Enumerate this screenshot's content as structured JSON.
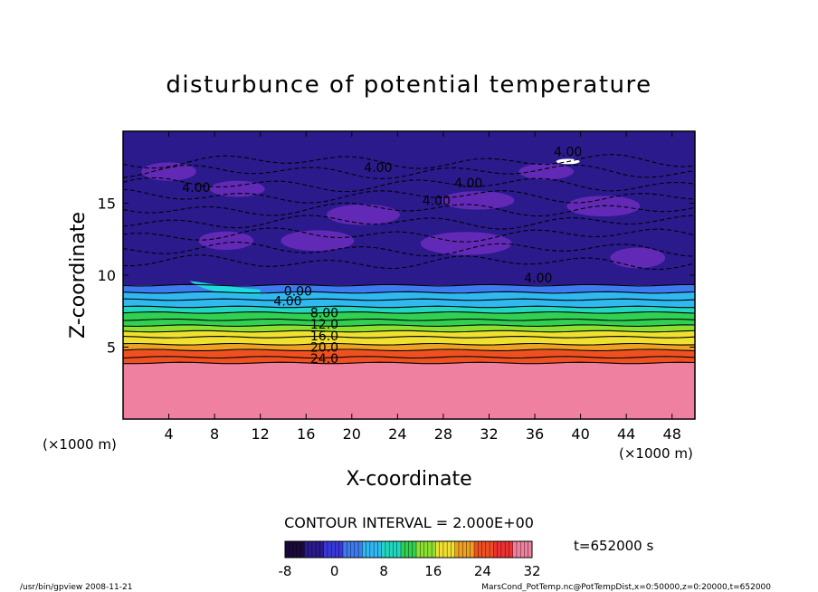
{
  "chart_data": {
    "type": "heatmap",
    "title": "disturbunce of potential temperature",
    "xlabel": "X-coordinate",
    "ylabel": "Z-coordinate",
    "x_unit": "(×1000 m)",
    "y_unit": "(×1000 m)",
    "xlim": [
      0,
      50
    ],
    "ylim": [
      0,
      20
    ],
    "x_ticks": [
      4,
      8,
      12,
      16,
      20,
      24,
      28,
      32,
      36,
      40,
      44,
      48
    ],
    "y_ticks": [
      5,
      10,
      15
    ],
    "contour_interval_text": "CONTOUR INTERVAL = 2.000E+00",
    "time_text": "t=652000 s",
    "colorbar": {
      "min": -8,
      "max": 32,
      "ticks": [
        -8,
        0,
        8,
        16,
        24,
        32
      ],
      "colors": [
        "#1a0a3a",
        "#2a1a8c",
        "#3838d8",
        "#3c7cf0",
        "#30b8f0",
        "#20d8c0",
        "#30d050",
        "#8ce030",
        "#f0e030",
        "#f0a020",
        "#f05020",
        "#f03030",
        "#f080a0"
      ]
    },
    "contour_labels": [
      {
        "text": "4.00",
        "x": 38.9,
        "z": 18.6
      },
      {
        "text": "4.00",
        "x": 22.3,
        "z": 17.5
      },
      {
        "text": "4.00",
        "x": 30.2,
        "z": 16.4
      },
      {
        "text": "4.00",
        "x": 6.4,
        "z": 16.1
      },
      {
        "text": "4.00",
        "x": 27.4,
        "z": 15.2
      },
      {
        "text": "4.00",
        "x": 36.3,
        "z": 9.8
      },
      {
        "text": "0.00",
        "x": 15.3,
        "z": 8.9
      },
      {
        "text": "4.00",
        "x": 14.4,
        "z": 8.2
      },
      {
        "text": "8.00",
        "x": 17.6,
        "z": 7.4
      },
      {
        "text": "12.0",
        "x": 17.6,
        "z": 6.6
      },
      {
        "text": "16.0",
        "x": 17.6,
        "z": 5.8
      },
      {
        "text": "20.0",
        "x": 17.6,
        "z": 5.0
      },
      {
        "text": "24.0",
        "x": 17.6,
        "z": 4.2
      }
    ],
    "bands": [
      {
        "z_from": 0,
        "z_to": 3.9,
        "value": 29
      },
      {
        "z_from": 3.9,
        "z_to": 4.3,
        "value": 25
      },
      {
        "z_from": 4.3,
        "z_to": 4.8,
        "value": 23
      },
      {
        "z_from": 4.8,
        "z_to": 5.2,
        "value": 21
      },
      {
        "z_from": 5.2,
        "z_to": 5.7,
        "value": 19
      },
      {
        "z_from": 5.7,
        "z_to": 6.1,
        "value": 17
      },
      {
        "z_from": 6.1,
        "z_to": 6.5,
        "value": 15
      },
      {
        "z_from": 6.5,
        "z_to": 6.9,
        "value": 13
      },
      {
        "z_from": 6.9,
        "z_to": 7.4,
        "value": 11
      },
      {
        "z_from": 7.4,
        "z_to": 7.8,
        "value": 9
      },
      {
        "z_from": 7.8,
        "z_to": 8.3,
        "value": 7
      },
      {
        "z_from": 8.3,
        "z_to": 8.8,
        "value": 5
      },
      {
        "z_from": 8.8,
        "z_to": 9.3,
        "value": 2
      },
      {
        "z_from": 9.3,
        "z_to": 20,
        "value": -3
      }
    ]
  },
  "footer": {
    "left": "/usr/bin/gpview   2008-11-21",
    "right": "MarsCond_PotTemp.nc@PotTempDist,x=0:50000,z=0:20000,t=652000"
  }
}
